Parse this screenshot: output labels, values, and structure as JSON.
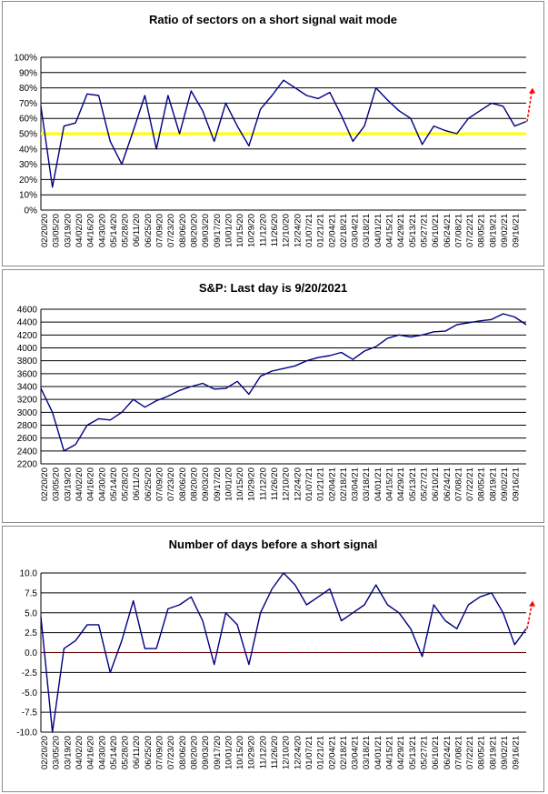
{
  "colors": {
    "series": "#000080",
    "grid": "#000000",
    "threshold": "#ffff00",
    "zero_line": "#c00000",
    "arrow": "#ff0000"
  },
  "dates": [
    "02/20/20",
    "03/05/20",
    "03/19/20",
    "04/02/20",
    "04/16/20",
    "04/30/20",
    "05/14/20",
    "05/28/20",
    "06/11/20",
    "06/25/20",
    "07/09/20",
    "07/23/20",
    "08/06/20",
    "08/20/20",
    "09/03/20",
    "09/17/20",
    "10/01/20",
    "10/15/20",
    "10/29/20",
    "11/12/20",
    "11/26/20",
    "12/10/20",
    "12/24/20",
    "01/07/21",
    "01/21/21",
    "02/04/21",
    "02/18/21",
    "03/04/21",
    "03/18/21",
    "04/01/21",
    "04/15/21",
    "04/29/21",
    "05/13/21",
    "05/27/21",
    "06/10/21",
    "06/24/21",
    "07/08/21",
    "07/22/21",
    "08/05/21",
    "08/19/21",
    "09/02/21",
    "09/16/21"
  ],
  "chart_data": [
    {
      "type": "line",
      "title": "Ratio of sectors on a short signal wait mode",
      "yticks": [
        "0%",
        "10%",
        "20%",
        "30%",
        "40%",
        "50%",
        "60%",
        "70%",
        "80%",
        "90%",
        "100%"
      ],
      "ylim": [
        0,
        100
      ],
      "reference_line": 50,
      "x": [
        "02/20/20",
        "03/05/20",
        "03/19/20",
        "04/02/20",
        "04/16/20",
        "04/30/20",
        "05/14/20",
        "05/28/20",
        "06/11/20",
        "06/25/20",
        "07/09/20",
        "07/23/20",
        "08/06/20",
        "08/20/20",
        "09/03/20",
        "09/17/20",
        "10/01/20",
        "10/15/20",
        "10/29/20",
        "11/12/20",
        "11/26/20",
        "12/10/20",
        "12/24/20",
        "01/07/21",
        "01/21/21",
        "02/04/21",
        "02/18/21",
        "03/04/21",
        "03/18/21",
        "04/01/21",
        "04/15/21",
        "04/29/21",
        "05/13/21",
        "05/27/21",
        "06/10/21",
        "06/24/21",
        "07/08/21",
        "07/22/21",
        "08/05/21",
        "08/19/21",
        "09/02/21",
        "09/16/21",
        "09/20/21"
      ],
      "values": [
        68,
        15,
        55,
        57,
        76,
        75,
        45,
        30,
        52,
        75,
        40,
        75,
        50,
        78,
        65,
        45,
        70,
        55,
        42,
        66,
        75,
        85,
        80,
        75,
        73,
        77,
        62,
        45,
        55,
        80,
        72,
        65,
        60,
        43,
        55,
        52,
        50,
        60,
        65,
        70,
        68,
        55,
        58
      ],
      "grid": true
    },
    {
      "type": "line",
      "title": "S&P: Last day is 9/20/2021",
      "yticks": [
        "2200",
        "2400",
        "2600",
        "2800",
        "3000",
        "3200",
        "3400",
        "3600",
        "3800",
        "4000",
        "4200",
        "4400",
        "4600"
      ],
      "ylim": [
        2200,
        4600
      ],
      "x": [
        "02/20/20",
        "03/05/20",
        "03/19/20",
        "04/02/20",
        "04/16/20",
        "04/30/20",
        "05/14/20",
        "05/28/20",
        "06/11/20",
        "06/25/20",
        "07/09/20",
        "07/23/20",
        "08/06/20",
        "08/20/20",
        "09/03/20",
        "09/17/20",
        "10/01/20",
        "10/15/20",
        "10/29/20",
        "11/12/20",
        "11/26/20",
        "12/10/20",
        "12/24/20",
        "01/07/21",
        "01/21/21",
        "02/04/21",
        "02/18/21",
        "03/04/21",
        "03/18/21",
        "04/01/21",
        "04/15/21",
        "04/29/21",
        "05/13/21",
        "05/27/21",
        "06/10/21",
        "06/24/21",
        "07/08/21",
        "07/22/21",
        "08/05/21",
        "08/19/21",
        "09/02/21",
        "09/16/21",
        "09/20/21"
      ],
      "values": [
        3370,
        3000,
        2400,
        2500,
        2800,
        2900,
        2880,
        3000,
        3200,
        3080,
        3180,
        3250,
        3340,
        3400,
        3450,
        3360,
        3370,
        3480,
        3280,
        3560,
        3640,
        3680,
        3720,
        3800,
        3850,
        3880,
        3930,
        3820,
        3950,
        4020,
        4150,
        4200,
        4170,
        4200,
        4250,
        4260,
        4360,
        4390,
        4420,
        4440,
        4530,
        4480,
        4360
      ],
      "grid": true
    },
    {
      "type": "line",
      "title": "Number of days before a short signal",
      "yticks": [
        "-10.0",
        "-7.5",
        "-5.0",
        "-2.5",
        "0.0",
        "2.5",
        "5.0",
        "7.5",
        "10.0"
      ],
      "ylim": [
        -10,
        10
      ],
      "reference_line": 0,
      "x": [
        "02/20/20",
        "03/05/20",
        "03/19/20",
        "04/02/20",
        "04/16/20",
        "04/30/20",
        "05/14/20",
        "05/28/20",
        "06/11/20",
        "06/25/20",
        "07/09/20",
        "07/23/20",
        "08/06/20",
        "08/20/20",
        "09/03/20",
        "09/17/20",
        "10/01/20",
        "10/15/20",
        "10/29/20",
        "11/12/20",
        "11/26/20",
        "12/10/20",
        "12/24/20",
        "01/07/21",
        "01/21/21",
        "02/04/21",
        "02/18/21",
        "03/04/21",
        "03/18/21",
        "04/01/21",
        "04/15/21",
        "04/29/21",
        "05/13/21",
        "05/27/21",
        "06/10/21",
        "06/24/21",
        "07/08/21",
        "07/22/21",
        "08/05/21",
        "08/19/21",
        "09/02/21",
        "09/16/21",
        "09/20/21"
      ],
      "values": [
        4.5,
        -10,
        0.5,
        1.5,
        3.5,
        3.5,
        -2.5,
        1.5,
        6.5,
        0.5,
        0.5,
        5.5,
        6,
        7,
        4,
        -1.5,
        5,
        3.5,
        -1.5,
        5,
        8,
        10,
        8.5,
        6,
        7,
        8,
        4,
        5,
        6,
        8.5,
        6,
        5,
        3,
        -0.5,
        6,
        4,
        3,
        6,
        7,
        7.5,
        5,
        1,
        3
      ],
      "grid": true
    }
  ]
}
